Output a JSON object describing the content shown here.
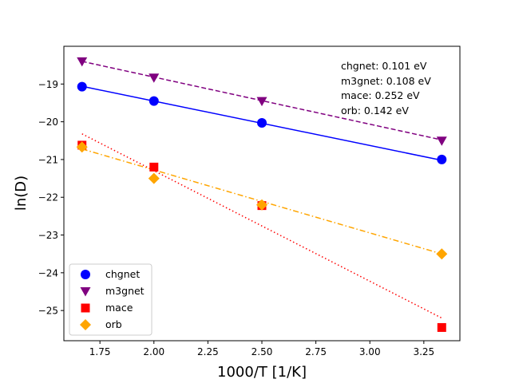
{
  "chart_data": {
    "type": "scatter",
    "title": "",
    "xlabel": "1000/T [1/K]",
    "ylabel": "ln(D)",
    "xlim": [
      1.583,
      3.417
    ],
    "ylim": [
      -25.8,
      -18.0
    ],
    "xticks": [
      1.75,
      2.0,
      2.25,
      2.5,
      2.75,
      3.0,
      3.25
    ],
    "xtick_labels": [
      "1.75",
      "2.00",
      "2.25",
      "2.50",
      "2.75",
      "3.00",
      "3.25"
    ],
    "yticks": [
      -25,
      -24,
      -23,
      -22,
      -21,
      -20,
      -19
    ],
    "ytick_labels": [
      "−25",
      "−24",
      "−23",
      "−22",
      "−21",
      "−20",
      "−19"
    ],
    "grid": false,
    "legend_position": "lower-left",
    "x": [
      1.667,
      2.0,
      2.5,
      3.333
    ],
    "series": [
      {
        "name": "chgnet",
        "color": "#0000ff",
        "marker": "circle",
        "line_style": "solid",
        "values": [
          -19.07,
          -19.45,
          -20.03,
          -21.0
        ],
        "fit": [
          -19.06,
          -21.02
        ]
      },
      {
        "name": "m3gnet",
        "color": "#800080",
        "marker": "triangle-down",
        "line_style": "dashed",
        "values": [
          -18.4,
          -18.83,
          -19.45,
          -20.5
        ],
        "fit": [
          -18.4,
          -20.48
        ]
      },
      {
        "name": "mace",
        "color": "#ff0000",
        "marker": "square",
        "line_style": "dotted",
        "values": [
          -20.62,
          -21.2,
          -22.22,
          -25.45
        ],
        "fit": [
          -20.32,
          -25.2
        ]
      },
      {
        "name": "orb",
        "color": "#ffa500",
        "marker": "diamond",
        "line_style": "dashdot",
        "values": [
          -20.67,
          -21.5,
          -22.2,
          -23.5
        ],
        "fit": [
          -20.72,
          -23.5
        ]
      }
    ],
    "annotations": [
      "chgnet: 0.101 eV",
      "m3gnet: 0.108 eV",
      "mace: 0.252 eV",
      "orb: 0.142 eV"
    ]
  }
}
